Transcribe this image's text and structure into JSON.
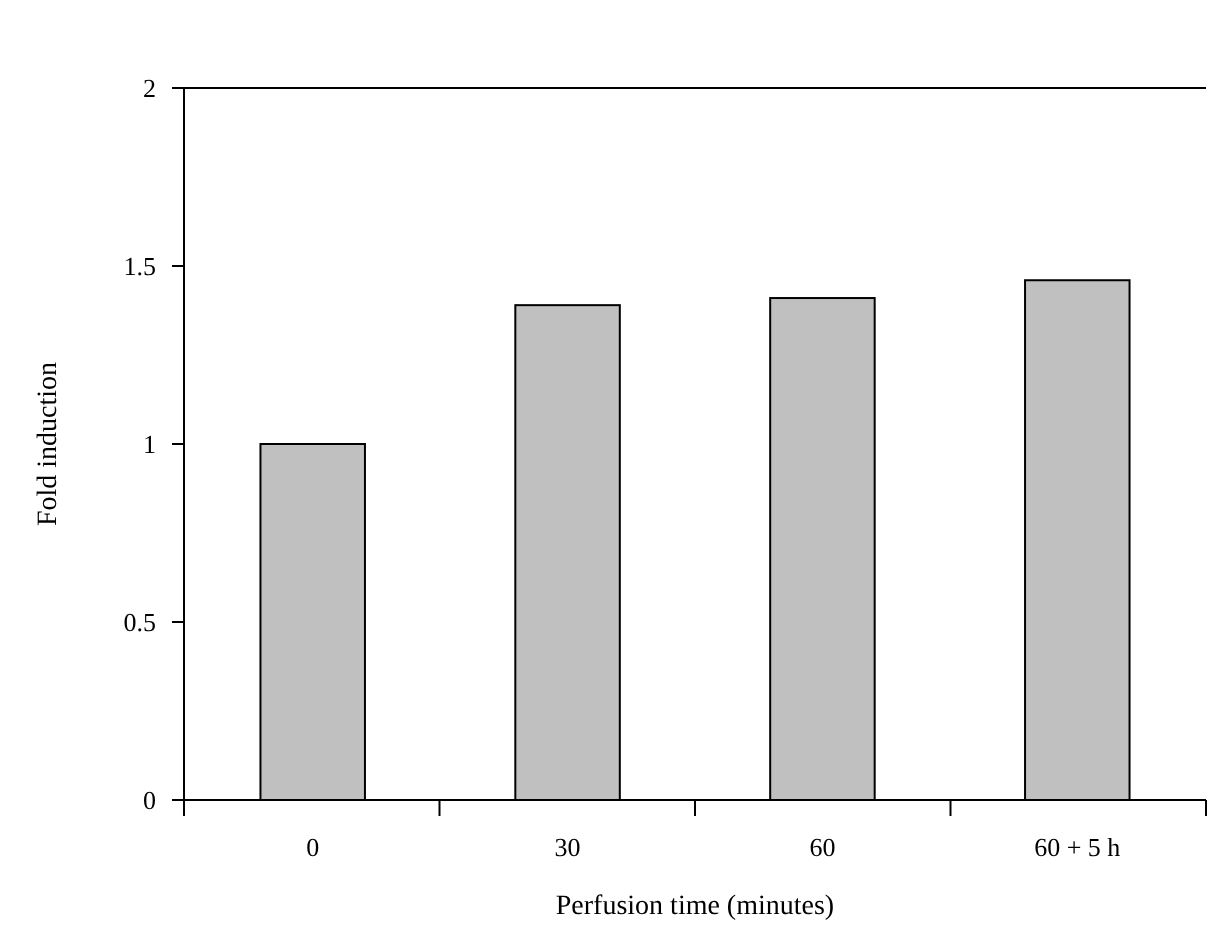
{
  "chart_data": {
    "type": "bar",
    "xlabel": "Perfusion time (minutes)",
    "ylabel": "Fold induction",
    "categories": [
      "0",
      "30",
      "60",
      "60 + 5 h"
    ],
    "values": [
      1.0,
      1.39,
      1.41,
      1.46
    ],
    "color": "#c0c0c0",
    "ylim": [
      0,
      2
    ],
    "yticks": [
      0,
      0.5,
      1,
      1.5,
      2
    ],
    "grid": false
  }
}
